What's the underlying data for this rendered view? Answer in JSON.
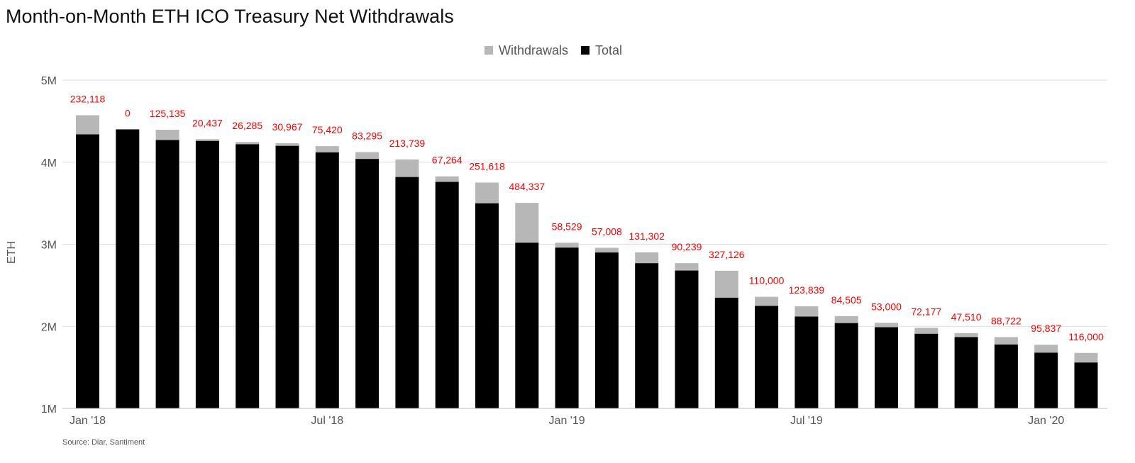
{
  "chart_data": {
    "type": "bar",
    "stacked": true,
    "title": "Month-on-Month ETH ICO Treasury Net Withdrawals",
    "ylabel": "ETH",
    "xlabel": "",
    "ylim": [
      1000000,
      5000000
    ],
    "y_ticks": [
      1000000,
      2000000,
      3000000,
      4000000,
      5000000
    ],
    "y_tick_labels": [
      "1M",
      "2M",
      "3M",
      "4M",
      "5M"
    ],
    "x_ticks": [
      {
        "index": 0,
        "label": "Jan '18"
      },
      {
        "index": 6,
        "label": "Jul '18"
      },
      {
        "index": 12,
        "label": "Jan '19"
      },
      {
        "index": 18,
        "label": "Jul '19"
      },
      {
        "index": 24,
        "label": "Jan '20"
      }
    ],
    "categories": [
      "Jan 2018",
      "Feb 2018",
      "Mar 2018",
      "Apr 2018",
      "May 2018",
      "Jun 2018",
      "Jul 2018",
      "Aug 2018",
      "Sep 2018",
      "Oct 2018",
      "Nov 2018",
      "Dec 2018",
      "Jan 2019",
      "Feb 2019",
      "Mar 2019",
      "Apr 2019",
      "May 2019",
      "Jun 2019",
      "Jul 2019",
      "Aug 2019",
      "Sep 2019",
      "Oct 2019",
      "Nov 2019",
      "Dec 2019",
      "Jan 2020",
      "Feb 2020"
    ],
    "series": [
      {
        "name": "Total",
        "color": "#000000",
        "values": [
          4340000,
          4400000,
          4270000,
          4260000,
          4220000,
          4200000,
          4120000,
          4040000,
          3820000,
          3760000,
          3500000,
          3020000,
          2960000,
          2900000,
          2770000,
          2680000,
          2350000,
          2250000,
          2120000,
          2040000,
          1990000,
          1910000,
          1870000,
          1780000,
          1680000,
          1560000
        ]
      },
      {
        "name": "Withdrawals",
        "color": "#b7b7b7",
        "values": [
          232118,
          0,
          125135,
          20437,
          26285,
          30967,
          75420,
          83295,
          213739,
          67264,
          251618,
          484337,
          58529,
          57008,
          131302,
          90239,
          327126,
          110000,
          123839,
          84505,
          53000,
          72177,
          47510,
          88722,
          95837,
          116000
        ]
      }
    ],
    "data_labels": [
      "232,118",
      "0",
      "125,135",
      "20,437",
      "26,285",
      "30,967",
      "75,420",
      "83,295",
      "213,739",
      "67,264",
      "251,618",
      "484,337",
      "58,529",
      "57,008",
      "131,302",
      "90,239",
      "327,126",
      "110,000",
      "123,839",
      "84,505",
      "53,000",
      "72,177",
      "47,510",
      "88,722",
      "95,837",
      "116,000"
    ],
    "data_label_color": "#ff0000",
    "legend": {
      "position": "top-center",
      "items": [
        {
          "label": "Withdrawals",
          "color": "#b7b7b7"
        },
        {
          "label": "Total",
          "color": "#000000"
        }
      ]
    },
    "grid": true,
    "source": "Source: Diar, Santiment"
  }
}
